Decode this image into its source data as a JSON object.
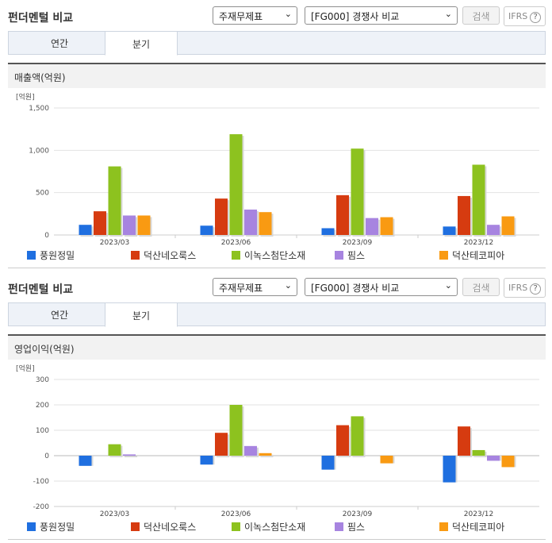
{
  "colors": {
    "s0": "#1f6fe0",
    "s1": "#d63b10",
    "s2": "#8dc21f",
    "s3": "#a784e0",
    "s4": "#f99a12",
    "grid": "#e2e2e2"
  },
  "panels": [
    {
      "title": "펀더멘털 비교",
      "select1": "주재무제표",
      "select2": "[FG000] 경쟁사 비교",
      "search_label": "검색",
      "ifrs_label": "IFRS",
      "help_icon": "question-icon",
      "tabs": [
        {
          "label": "연간",
          "active": false
        },
        {
          "label": "분기",
          "active": true
        }
      ],
      "section_title": "매출액(억원)",
      "chart_data": {
        "type": "bar",
        "unit_label": "[억원]",
        "categories": [
          "2023/03",
          "2023/06",
          "2023/09",
          "2023/12"
        ],
        "yticks": [
          "1,500",
          "1,000",
          "500",
          "0"
        ],
        "ylim": [
          0,
          1500
        ],
        "series": [
          {
            "name": "풍원정밀",
            "values": [
              120,
              110,
              80,
              100
            ]
          },
          {
            "name": "덕산네오룩스",
            "values": [
              280,
              430,
              470,
              460
            ]
          },
          {
            "name": "이녹스첨단소재",
            "values": [
              810,
              1190,
              1020,
              830
            ]
          },
          {
            "name": "핌스",
            "values": [
              230,
              300,
              200,
              120
            ]
          },
          {
            "name": "덕산테코피아",
            "values": [
              230,
              270,
              210,
              220
            ]
          }
        ]
      }
    },
    {
      "title": "펀더멘털 비교",
      "select1": "주재무제표",
      "select2": "[FG000] 경쟁사 비교",
      "search_label": "검색",
      "ifrs_label": "IFRS",
      "help_icon": "question-icon",
      "tabs": [
        {
          "label": "연간",
          "active": false
        },
        {
          "label": "분기",
          "active": true
        }
      ],
      "section_title": "영업이익(억원)",
      "chart_data": {
        "type": "bar",
        "unit_label": "[억원]",
        "categories": [
          "2023/03",
          "2023/06",
          "2023/09",
          "2023/12"
        ],
        "yticks": [
          "300",
          "200",
          "100",
          "0",
          "-100",
          "-200"
        ],
        "ylim": [
          -200,
          300
        ],
        "series": [
          {
            "name": "풍원정밀",
            "values": [
              -40,
              -35,
              -55,
              -105
            ]
          },
          {
            "name": "덕산네오룩스",
            "values": [
              0,
              90,
              120,
              115
            ]
          },
          {
            "name": "이녹스첨단소재",
            "values": [
              45,
              200,
              155,
              22
            ]
          },
          {
            "name": "핌스",
            "values": [
              5,
              38,
              0,
              -20
            ]
          },
          {
            "name": "덕산테코피아",
            "values": [
              0,
              10,
              -30,
              -45
            ]
          }
        ]
      }
    }
  ]
}
